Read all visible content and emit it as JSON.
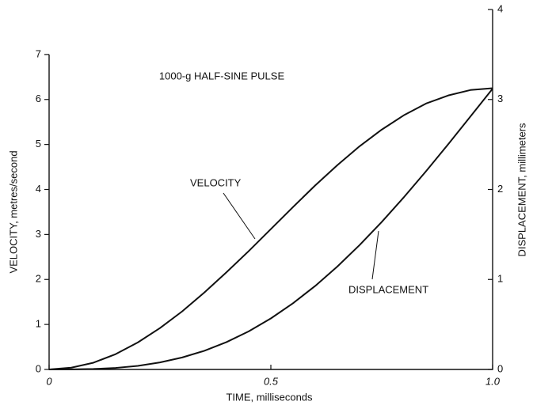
{
  "chart_data": {
    "type": "line",
    "title": "1000-g HALF-SINE PULSE",
    "x_label": "TIME, milliseconds",
    "y_label": "VELOCITY, metres/second",
    "y2_label": "DISPLACEMENT, millimeters",
    "x": [
      0,
      0.05,
      0.1,
      0.15,
      0.2,
      0.25,
      0.3,
      0.35,
      0.4,
      0.45,
      0.5,
      0.55,
      0.6,
      0.65,
      0.7,
      0.75,
      0.8,
      0.85,
      0.9,
      0.95,
      1.0
    ],
    "series": [
      {
        "name": "VELOCITY",
        "color": "#111111",
        "values": [
          0,
          0.04,
          0.15,
          0.34,
          0.6,
          0.92,
          1.29,
          1.71,
          2.16,
          2.63,
          3.12,
          3.61,
          4.09,
          4.54,
          4.96,
          5.33,
          5.65,
          5.91,
          6.09,
          6.21,
          6.25
        ]
      },
      {
        "name": "DISPLACEMENT",
        "color": "#111111",
        "axis": "y2",
        "values": [
          0,
          0.001,
          0.005,
          0.017,
          0.04,
          0.078,
          0.133,
          0.207,
          0.304,
          0.423,
          0.567,
          0.736,
          0.928,
          1.144,
          1.382,
          1.639,
          1.914,
          2.203,
          2.503,
          2.811,
          3.12
        ]
      }
    ],
    "xlim": [
      0,
      1
    ],
    "xticks": [
      0,
      0.5,
      {
        "value": 1,
        "label": "1.0"
      }
    ],
    "ylim": [
      0,
      8
    ],
    "yticks": [
      0,
      1,
      2,
      3,
      4,
      5,
      6,
      7
    ],
    "y2lim": [
      0,
      4
    ],
    "y2ticks": [
      0,
      1,
      2,
      3,
      4
    ]
  }
}
